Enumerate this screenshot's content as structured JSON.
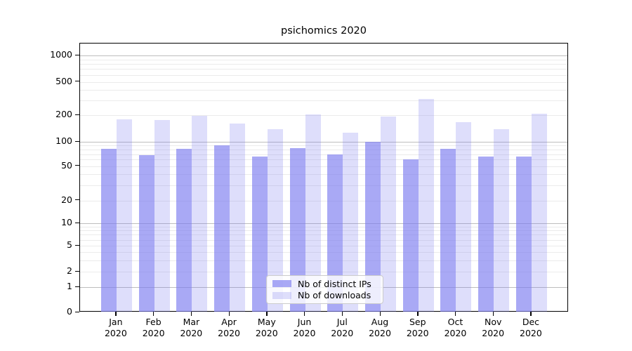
{
  "title": "psichomics 2020",
  "colors": {
    "bar_distinct_ips": "rgba(124,124,240,0.66)",
    "bar_downloads": "rgba(124,124,240,0.25)",
    "grid_major": "#bdbdbd",
    "grid_minor": "#ebebeb",
    "axis": "#000000",
    "legend_border": "#cccccc",
    "legend_background": "rgba(255,255,255,0.8)"
  },
  "legend": {
    "items": [
      {
        "label": "Nb of distinct IPs",
        "series": "ips"
      },
      {
        "label": "Nb of downloads",
        "series": "downloads"
      }
    ]
  },
  "chart_data": {
    "type": "bar",
    "title": "psichomics 2020",
    "categories": [
      "Jan 2020",
      "Feb 2020",
      "Mar 2020",
      "Apr 2020",
      "May 2020",
      "Jun 2020",
      "Jul 2020",
      "Aug 2020",
      "Sep 2020",
      "Oct 2020",
      "Nov 2020",
      "Dec 2020"
    ],
    "x_tick_top_lines": [
      "Jan",
      "Feb",
      "Mar",
      "Apr",
      "May",
      "Jun",
      "Jul",
      "Aug",
      "Sep",
      "Oct",
      "Nov",
      "Dec"
    ],
    "x_tick_bottom_line": "2020",
    "series": [
      {
        "name": "Nb of distinct IPs",
        "values": [
          81,
          68,
          82,
          90,
          66,
          84,
          70,
          100,
          61,
          82,
          65,
          65
        ]
      },
      {
        "name": "Nb of downloads",
        "values": [
          181,
          176,
          197,
          162,
          140,
          204,
          127,
          193,
          312,
          168,
          139,
          208
        ]
      }
    ],
    "xlabel": "",
    "ylabel": "",
    "yscale": "log-like (symlog with 0 baseline)",
    "y_ticks": [
      0,
      1,
      2,
      5,
      10,
      20,
      50,
      100,
      200,
      500,
      1000
    ],
    "ylim": [
      0,
      1500
    ],
    "grid": "on (horizontal, major decades darker, minors faint)",
    "legend_position": "lower center"
  }
}
